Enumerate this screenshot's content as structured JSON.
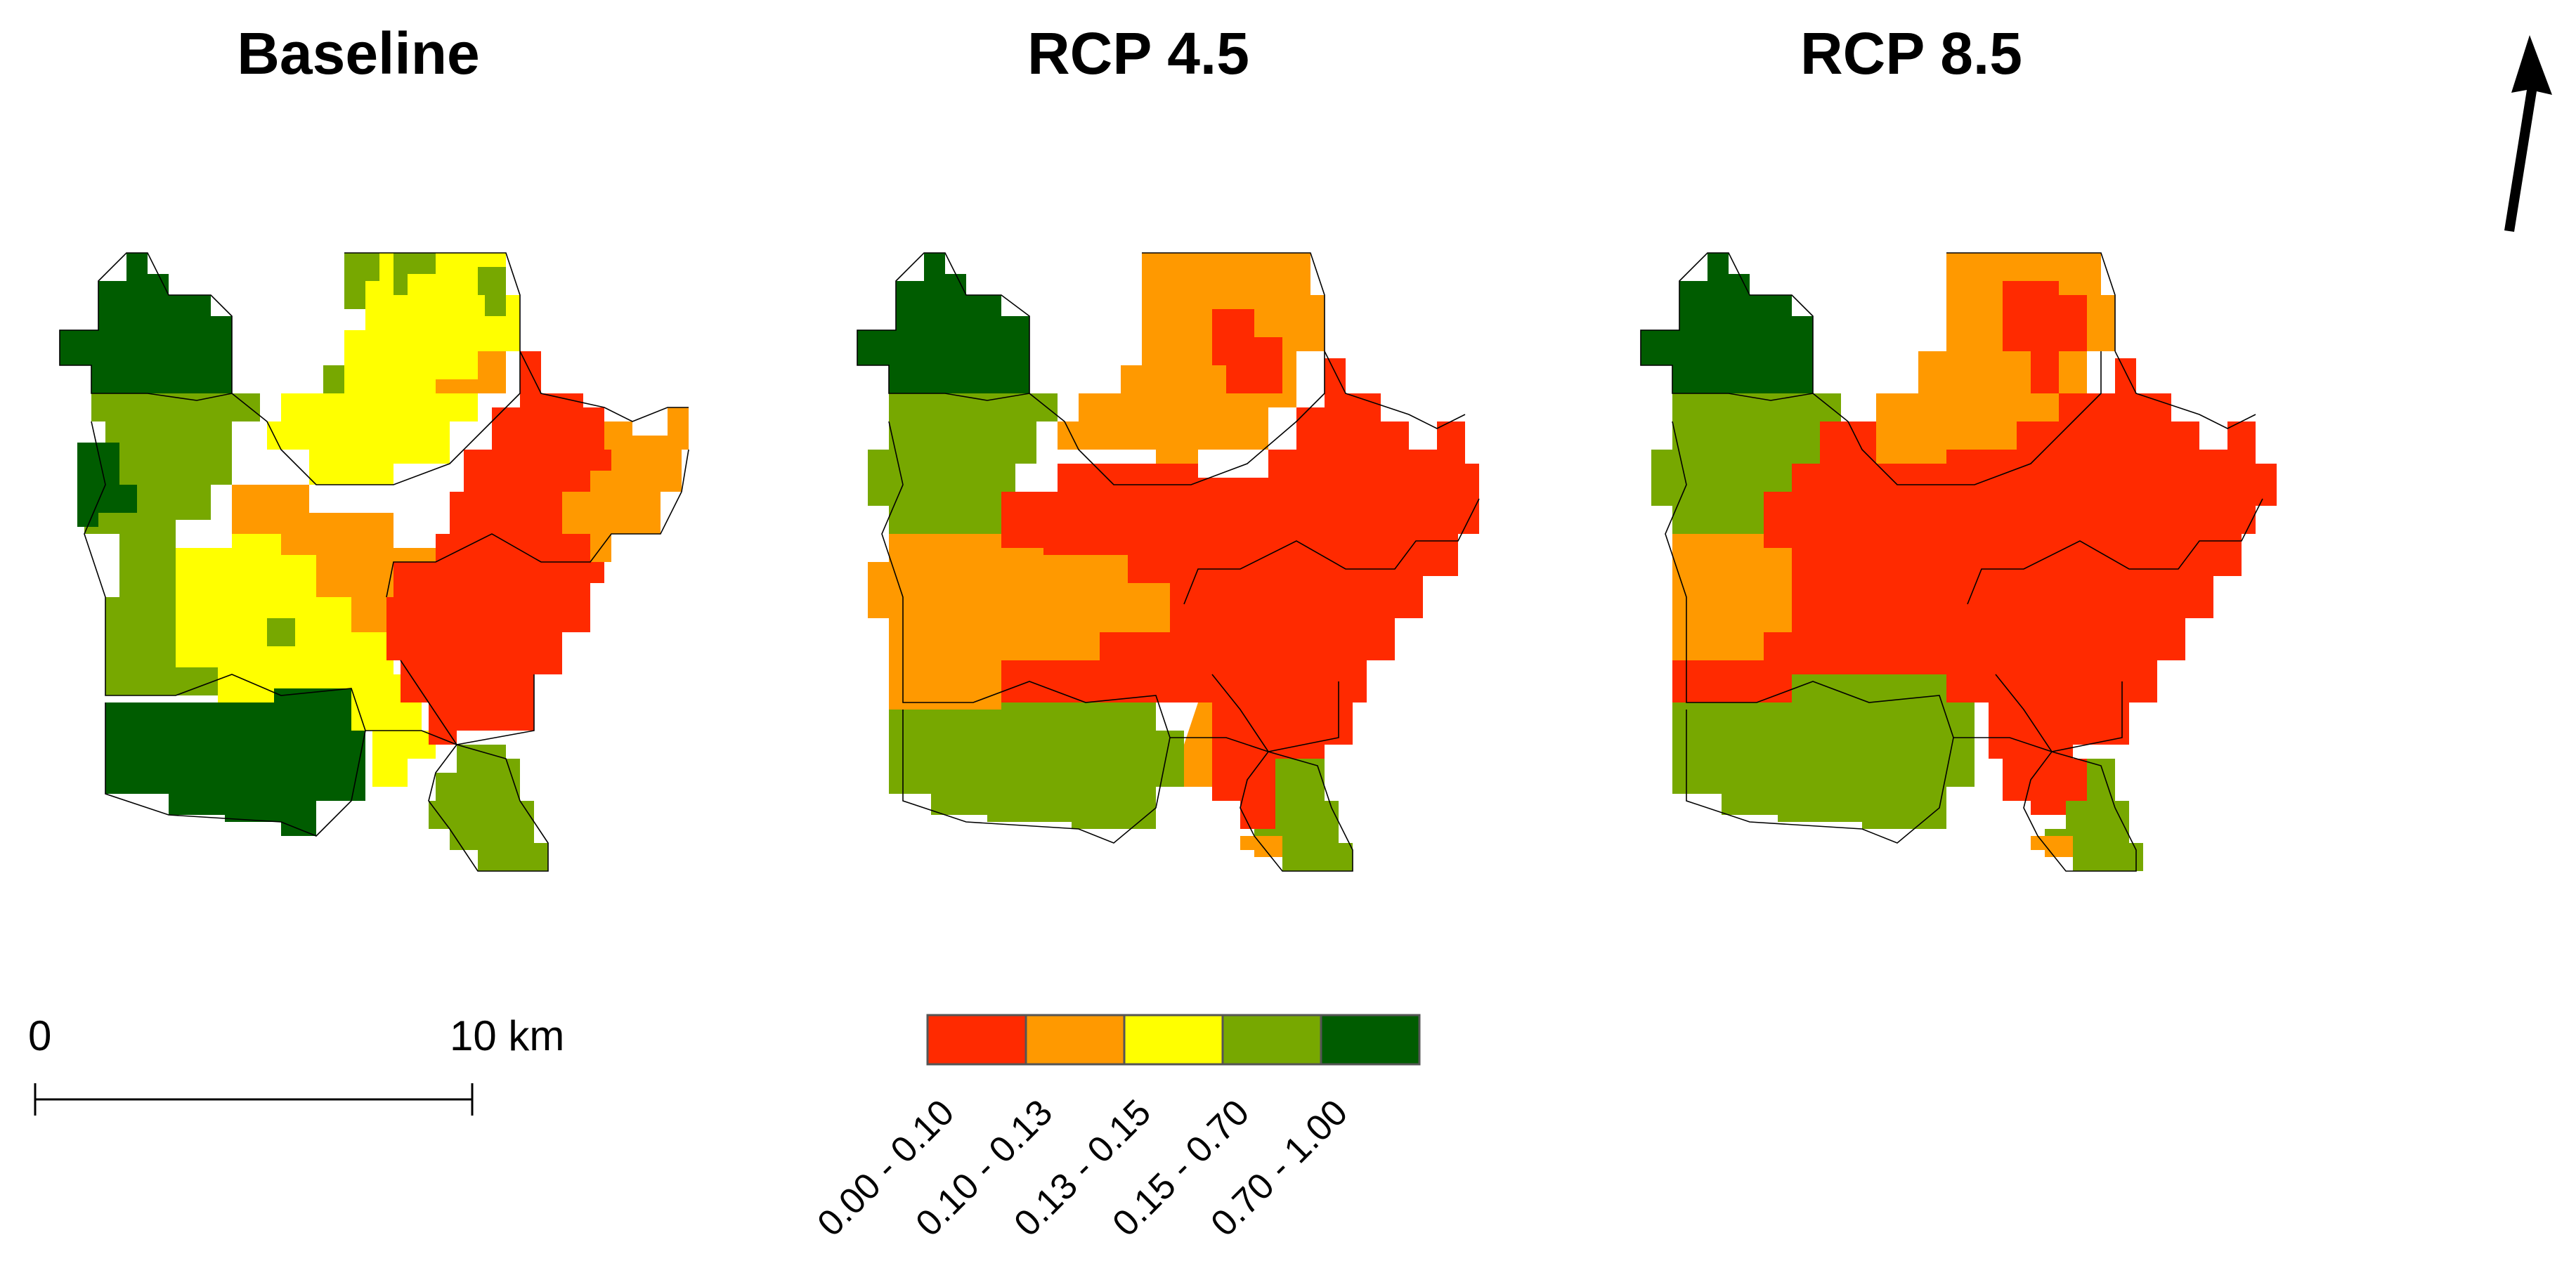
{
  "maps": [
    {
      "title": "Baseline"
    },
    {
      "title": "RCP 4.5"
    },
    {
      "title": "RCP 8.5"
    }
  ],
  "scale_bar": {
    "start_label": "0",
    "end_label": "10 km"
  },
  "legend": {
    "classes": [
      {
        "label": "0.00 - 0.10",
        "color": "#ff2a00"
      },
      {
        "label": "0.10 - 0.13",
        "color": "#ff9900"
      },
      {
        "label": "0.13 - 0.15",
        "color": "#ffff00"
      },
      {
        "label": "0.15 - 0.70",
        "color": "#77a800"
      },
      {
        "label": "0.70 - 1.00",
        "color": "#005c00"
      }
    ]
  },
  "north_arrow": {
    "icon": "north-arrow-icon"
  }
}
